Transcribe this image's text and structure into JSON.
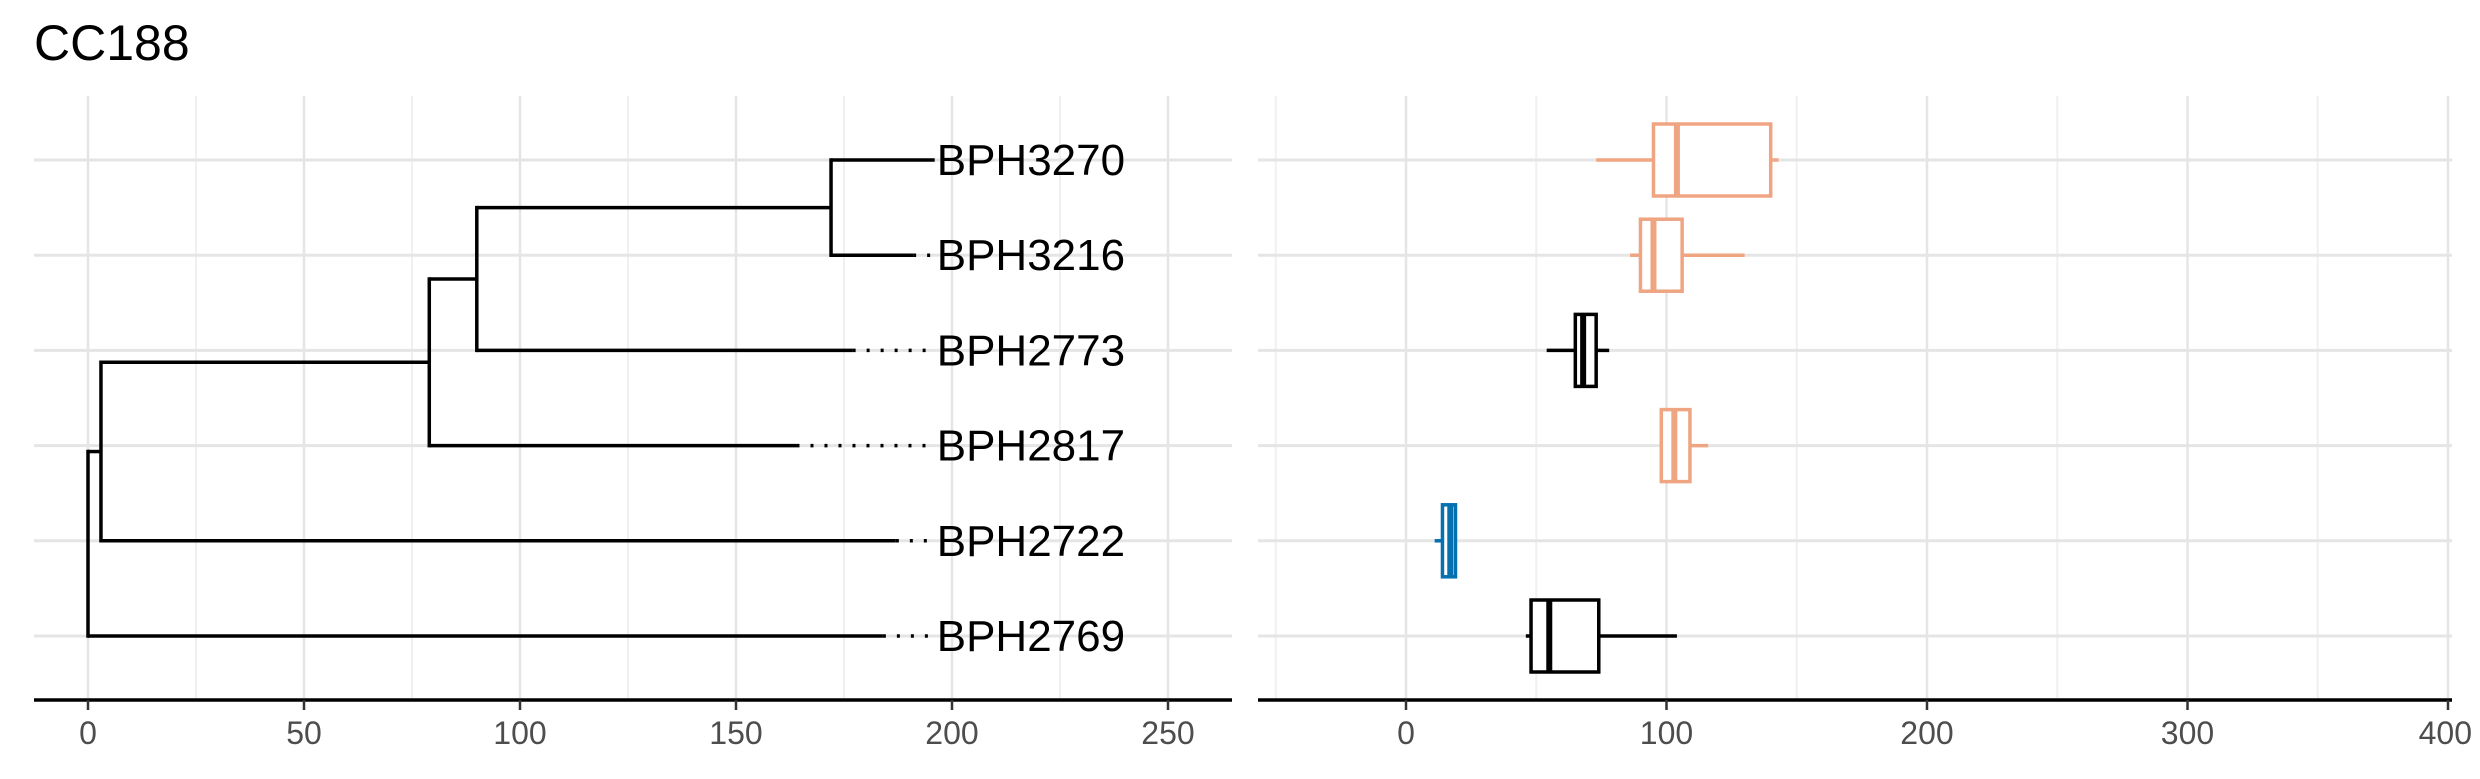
{
  "title": "CC188",
  "colors": {
    "grid_major": "#e5e5e5",
    "grid_minor": "#f0f0f0",
    "axis": "#000000",
    "tree": "#000000",
    "tick_text": "#4d4d4d"
  },
  "chart_data": [
    {
      "type": "dendrogram",
      "title": "CC188",
      "xlim": [
        -6,
        265
      ],
      "x_ticks": [
        0,
        50,
        100,
        150,
        200,
        250
      ],
      "x_tick_labels": [
        "0",
        "50",
        "100",
        "150",
        "200",
        "250"
      ],
      "grid": true,
      "tips": [
        {
          "label": "BPH3270",
          "branch_end": 196
        },
        {
          "label": "BPH3216",
          "branch_end": 191
        },
        {
          "label": "BPH2773",
          "branch_end": 177
        },
        {
          "label": "BPH2817",
          "branch_end": 164
        },
        {
          "label": "BPH2722",
          "branch_end": 187
        },
        {
          "label": "BPH2769",
          "branch_end": 184
        }
      ],
      "tip_label_x": 196,
      "nodes": [
        {
          "x": 172,
          "children": [
            "BPH3270",
            "BPH3216"
          ]
        },
        {
          "x": 90,
          "children": [
            "node0",
            "BPH2773"
          ]
        },
        {
          "x": 79,
          "children": [
            "node1",
            "BPH2817"
          ]
        },
        {
          "x": 3,
          "children": [
            "node2",
            "BPH2722"
          ]
        },
        {
          "x": 0,
          "children": [
            "node3",
            "BPH2769"
          ]
        }
      ]
    },
    {
      "type": "boxplot",
      "xlim": [
        -57,
        402
      ],
      "x_ticks": [
        0,
        100,
        200,
        300,
        400
      ],
      "x_tick_labels": [
        "0",
        "100",
        "200",
        "300",
        "400"
      ],
      "grid": true,
      "boxes": [
        {
          "category": "BPH3270",
          "color": "#f0a582",
          "min": 73,
          "q1": 95,
          "median": 104,
          "q3": 140,
          "max": 143
        },
        {
          "category": "BPH3216",
          "color": "#f0a582",
          "min": 86,
          "q1": 90,
          "median": 95,
          "q3": 106,
          "max": 130
        },
        {
          "category": "BPH2773",
          "color": "#000000",
          "min": 54,
          "q1": 65,
          "median": 68,
          "q3": 73,
          "max": 78
        },
        {
          "category": "BPH2817",
          "color": "#f0a582",
          "min": 98,
          "q1": 98,
          "median": 103,
          "q3": 109,
          "max": 116
        },
        {
          "category": "BPH2722",
          "color": "#0571b0",
          "min": 11,
          "q1": 14,
          "median": 17,
          "q3": 19,
          "max": 19
        },
        {
          "category": "BPH2769",
          "color": "#000000",
          "min": 46,
          "q1": 48,
          "median": 55,
          "q3": 74,
          "max": 104
        }
      ]
    }
  ]
}
